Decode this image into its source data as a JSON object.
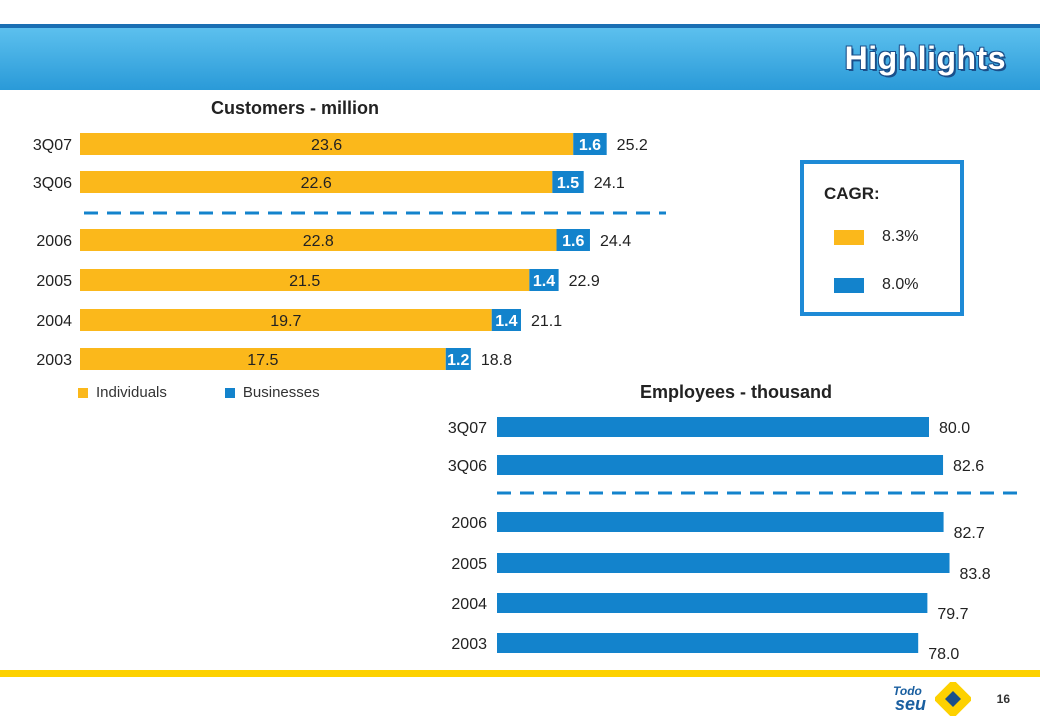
{
  "header": {
    "title": "Highlights"
  },
  "colors": {
    "individuals": "#fbb81b",
    "businesses": "#1383cc",
    "employees": "#1383cc",
    "accent": "#fdd100",
    "header": "#2a9ad8"
  },
  "cagr": {
    "title": "CAGR:",
    "items": [
      {
        "label": "8.3%",
        "color": "#fbb81b"
      },
      {
        "label": "8.0%",
        "color": "#1383cc"
      }
    ]
  },
  "legend": [
    {
      "label": "Individuals",
      "color": "#fbb81b"
    },
    {
      "label": "Businesses",
      "color": "#1383cc"
    }
  ],
  "footer": {
    "page_number": "16",
    "logo_line1": "Todo",
    "logo_line2": "seu"
  },
  "chart_data": [
    {
      "type": "bar",
      "orientation": "horizontal",
      "stacked": true,
      "title": "Customers - million",
      "categories": [
        "3Q07",
        "3Q06",
        "2006",
        "2005",
        "2004",
        "2003"
      ],
      "series": [
        {
          "name": "Individuals",
          "values": [
            23.6,
            22.6,
            22.8,
            21.5,
            19.7,
            17.5
          ],
          "labels": [
            "23.6",
            "22.6",
            "22.8",
            "21.5",
            "19.7",
            "17.5"
          ]
        },
        {
          "name": "Businesses",
          "values": [
            1.6,
            1.5,
            1.6,
            1.4,
            1.4,
            1.2
          ],
          "labels": [
            "1.6",
            "1.5",
            "1.6",
            "1.4",
            "1.4",
            "1.2"
          ]
        }
      ],
      "totals": [
        "25.2",
        "24.1",
        "24.4",
        "22.9",
        "21.1",
        "18.8"
      ],
      "legend_position": "bottom-left",
      "grid": false
    },
    {
      "type": "bar",
      "orientation": "horizontal",
      "title": "Employees - thousand",
      "categories": [
        "3Q07",
        "3Q06",
        "2006",
        "2005",
        "2004",
        "2003"
      ],
      "values": [
        80.0,
        82.6,
        82.7,
        83.8,
        79.7,
        78.0
      ],
      "labels": [
        "80.0",
        "82.6",
        "82.7",
        "83.8",
        "79.7",
        "78.0"
      ],
      "grid": false
    }
  ]
}
